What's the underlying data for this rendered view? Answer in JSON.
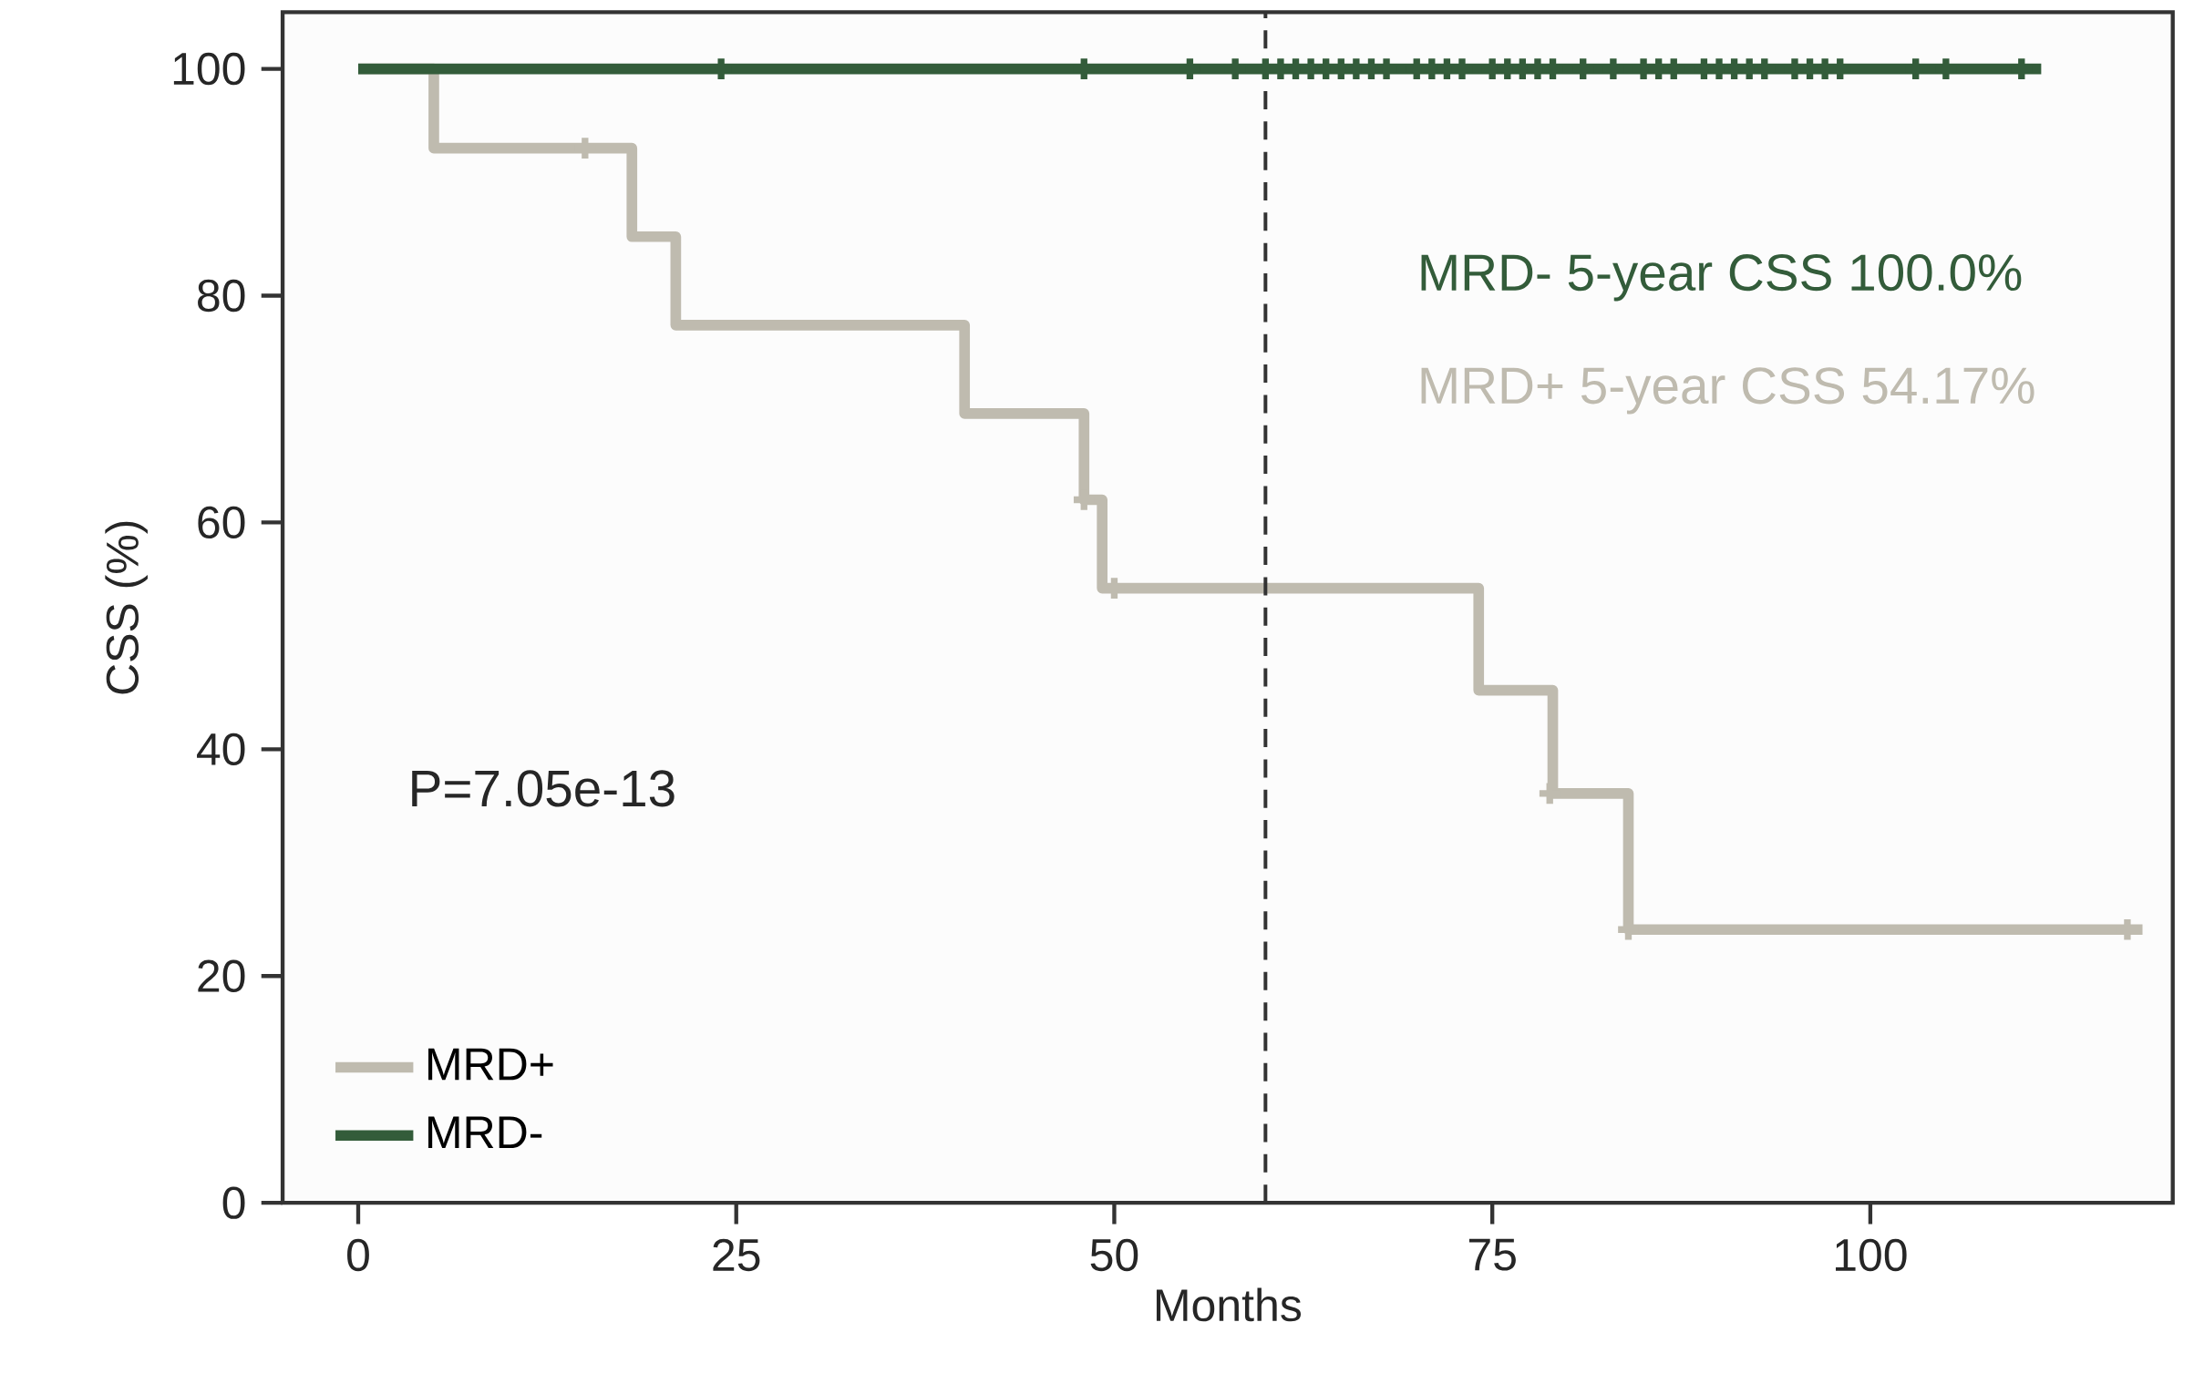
{
  "chart_data": {
    "type": "step",
    "xlabel": "Months",
    "ylabel": "CSS (%)",
    "xlim": [
      -5,
      120
    ],
    "ylim": [
      0,
      105
    ],
    "xticks": [
      0,
      25,
      50,
      75,
      100
    ],
    "yticks": [
      0,
      20,
      40,
      60,
      80,
      100
    ],
    "legend": "bottom left",
    "ref_lines": [
      {
        "axis": "x",
        "value": 60,
        "line_style": "dashed",
        "color": "#333333"
      }
    ],
    "annotations": [
      "MRD- 5-year CSS 100.0%",
      "MRD+ 5-year CSS 54.17%",
      "P=7.05e-13"
    ],
    "series": [
      {
        "name": "MRD+",
        "color": "#bfbbaf",
        "x": [
          0,
          5,
          18.1,
          21,
          40.1,
          48,
          49.2,
          74.1,
          79,
          84,
          118
        ],
        "values": [
          100,
          93,
          85.2,
          77.4,
          69.6,
          62,
          54.2,
          45.2,
          36.1,
          24.1,
          24.1
        ]
      },
      {
        "name": "MRD-",
        "color": "#335c3a",
        "x": [
          0,
          111.3
        ],
        "values": [
          100,
          100
        ]
      },
      {
        "type": "scatter",
        "marker": "cross",
        "color": "#bfbbaf",
        "x": [
          15,
          48,
          50,
          78.8,
          84,
          117
        ],
        "values": [
          93,
          62,
          54.2,
          36.1,
          24.1,
          24.1
        ]
      },
      {
        "type": "scatter",
        "marker": "cross",
        "color": "#335c3a",
        "x": [
          24,
          48,
          55,
          58,
          60,
          61,
          62,
          63,
          64,
          65,
          66,
          67,
          68,
          70,
          71,
          72,
          73,
          75,
          76,
          77,
          78,
          79,
          81,
          83,
          85,
          86,
          87,
          89,
          90,
          91,
          92,
          93,
          95,
          96,
          97,
          98,
          103,
          105,
          110
        ],
        "values": [
          100,
          100,
          100,
          100,
          100,
          100,
          100,
          100,
          100,
          100,
          100,
          100,
          100,
          100,
          100,
          100,
          100,
          100,
          100,
          100,
          100,
          100,
          100,
          100,
          100,
          100,
          100,
          100,
          100,
          100,
          100,
          100,
          100,
          100,
          100,
          100,
          100,
          100,
          100
        ]
      }
    ]
  }
}
